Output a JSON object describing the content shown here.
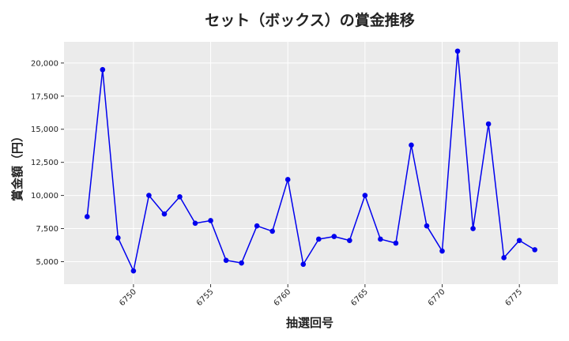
{
  "chart_data": {
    "type": "line",
    "title": "セット（ボックス）の賞金推移",
    "xlabel": "抽選回号",
    "ylabel": "賞金額（円）",
    "xlim": [
      6745.5,
      6777.5
    ],
    "ylim": [
      3300,
      21600
    ],
    "x_ticks": [
      6750,
      6755,
      6760,
      6765,
      6770,
      6775
    ],
    "y_ticks": [
      5000,
      7500,
      10000,
      12500,
      15000,
      17500,
      20000
    ],
    "y_tick_labels": [
      "5,000",
      "7,500",
      "10,000",
      "12,500",
      "15,000",
      "17,500",
      "20,000"
    ],
    "grid": true,
    "background": "#ebebeb",
    "line_color": "#0000ee",
    "series": [
      {
        "x": [
          6747,
          6748,
          6749,
          6750,
          6751,
          6752,
          6753,
          6754,
          6755,
          6756,
          6757,
          6758,
          6759,
          6760,
          6761,
          6762,
          6763,
          6764,
          6765,
          6766,
          6767,
          6768,
          6769,
          6770,
          6771,
          6772,
          6773,
          6774,
          6775,
          6776
        ],
        "y": [
          8400,
          19500,
          6800,
          4300,
          10000,
          8600,
          9900,
          7900,
          8100,
          5100,
          4900,
          7700,
          7300,
          11200,
          4800,
          6700,
          6900,
          6600,
          10000,
          6700,
          6400,
          13800,
          7700,
          5800,
          20900,
          7500,
          15400,
          5300,
          6600,
          5900
        ]
      }
    ]
  }
}
